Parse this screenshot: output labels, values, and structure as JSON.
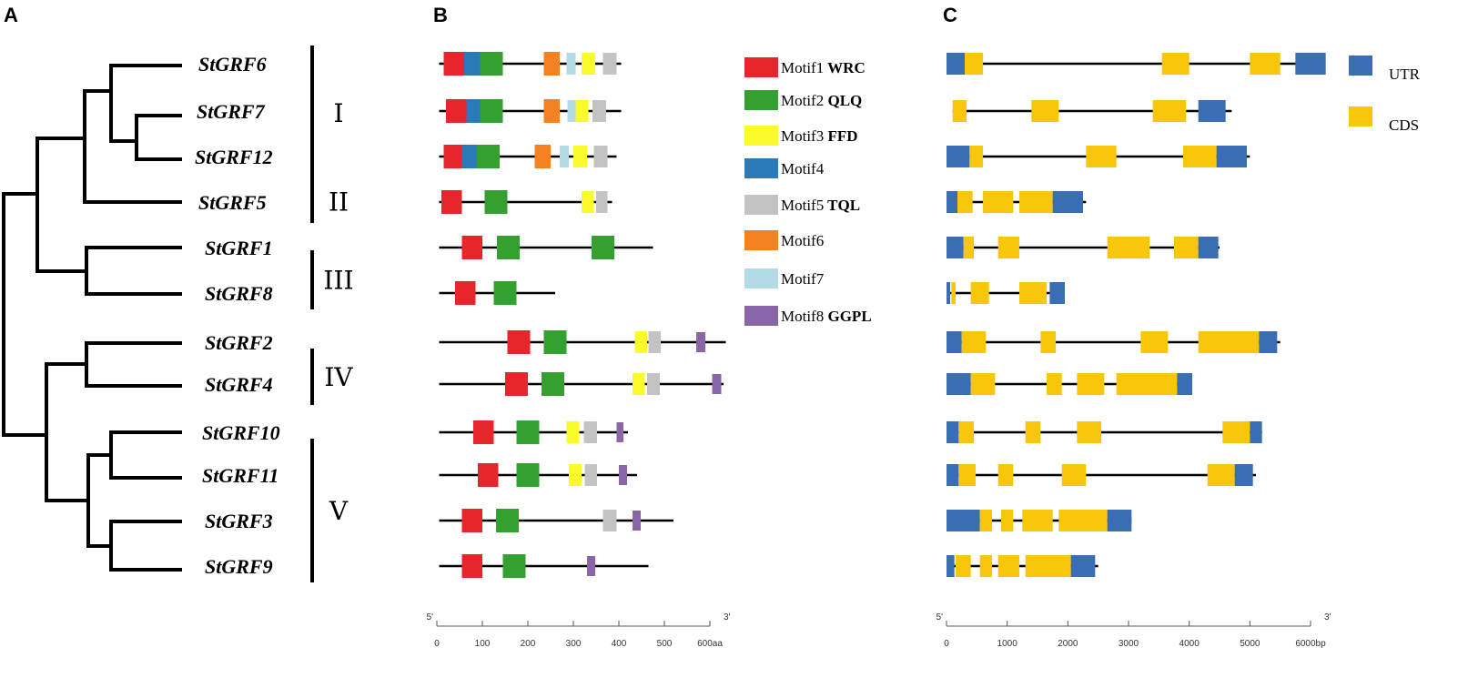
{
  "panels": {
    "a": "A",
    "b": "B",
    "c": "C"
  },
  "genes": [
    "StGRF6",
    "StGRF7",
    "StGRF12",
    "StGRF5",
    "StGRF1",
    "StGRF8",
    "StGRF2",
    "StGRF4",
    "StGRF10",
    "StGRF11",
    "StGRF3",
    "StGRF9"
  ],
  "groups": [
    {
      "label": "I",
      "rows": [
        0,
        2
      ]
    },
    {
      "label": "II",
      "rows": [
        3,
        3
      ]
    },
    {
      "label": "III",
      "rows": [
        4,
        5
      ]
    },
    {
      "label": "IV",
      "rows": [
        6,
        7
      ]
    },
    {
      "label": "V",
      "rows": [
        8,
        11
      ]
    }
  ],
  "motif_legend": [
    {
      "id": 1,
      "name": "Motif1",
      "tag": "WRC",
      "color": "#e8252a"
    },
    {
      "id": 2,
      "name": "Motif2",
      "tag": "QLQ",
      "color": "#34a02f"
    },
    {
      "id": 3,
      "name": "Motif3",
      "tag": "FFD",
      "color": "#fbfb2a"
    },
    {
      "id": 4,
      "name": "Motif4",
      "tag": "",
      "color": "#2a79b9"
    },
    {
      "id": 5,
      "name": "Motif5",
      "tag": "TQL",
      "color": "#c3c3c3"
    },
    {
      "id": 6,
      "name": "Motif6",
      "tag": "",
      "color": "#f58220"
    },
    {
      "id": 7,
      "name": "Motif7",
      "tag": "",
      "color": "#b3dbe6"
    },
    {
      "id": 8,
      "name": "Motif8",
      "tag": "GGPL",
      "color": "#8a66a8"
    }
  ],
  "motif_track": [
    {
      "gene": "StGRF6",
      "start": 5,
      "end": 405,
      "motifs": [
        [
          1,
          15,
          60
        ],
        [
          4,
          60,
          95
        ],
        [
          2,
          95,
          145
        ],
        [
          6,
          235,
          270
        ],
        [
          7,
          285,
          305
        ],
        [
          3,
          318,
          348
        ],
        [
          5,
          365,
          395
        ]
      ]
    },
    {
      "gene": "StGRF7",
      "start": 5,
      "end": 405,
      "motifs": [
        [
          1,
          20,
          65
        ],
        [
          4,
          65,
          95
        ],
        [
          2,
          95,
          145
        ],
        [
          6,
          235,
          270
        ],
        [
          7,
          287,
          305
        ],
        [
          3,
          305,
          333
        ],
        [
          5,
          342,
          372
        ]
      ]
    },
    {
      "gene": "StGRF12",
      "start": 5,
      "end": 395,
      "motifs": [
        [
          1,
          15,
          55
        ],
        [
          4,
          55,
          88
        ],
        [
          2,
          88,
          138
        ],
        [
          6,
          215,
          250
        ],
        [
          7,
          270,
          290
        ],
        [
          3,
          300,
          330
        ],
        [
          5,
          345,
          375
        ]
      ]
    },
    {
      "gene": "StGRF5",
      "start": 5,
      "end": 385,
      "motifs": [
        [
          1,
          10,
          55
        ],
        [
          2,
          105,
          155
        ],
        [
          3,
          318,
          345
        ],
        [
          5,
          350,
          375
        ]
      ]
    },
    {
      "gene": "StGRF1",
      "start": 5,
      "end": 475,
      "motifs": [
        [
          1,
          55,
          100
        ],
        [
          2,
          132,
          182
        ],
        [
          2,
          340,
          390
        ]
      ]
    },
    {
      "gene": "StGRF8",
      "start": 5,
      "end": 260,
      "motifs": [
        [
          1,
          40,
          85
        ],
        [
          2,
          125,
          175
        ]
      ]
    },
    {
      "gene": "StGRF2",
      "start": 5,
      "end": 635,
      "motifs": [
        [
          1,
          155,
          205
        ],
        [
          2,
          235,
          285
        ],
        [
          3,
          435,
          462
        ],
        [
          5,
          465,
          492
        ],
        [
          8,
          570,
          590
        ]
      ]
    },
    {
      "gene": "StGRF4",
      "start": 5,
      "end": 630,
      "motifs": [
        [
          1,
          150,
          200
        ],
        [
          2,
          230,
          280
        ],
        [
          3,
          430,
          457
        ],
        [
          5,
          462,
          490
        ],
        [
          8,
          605,
          625
        ]
      ]
    },
    {
      "gene": "StGRF10",
      "start": 5,
      "end": 420,
      "motifs": [
        [
          1,
          80,
          125
        ],
        [
          2,
          175,
          225
        ],
        [
          3,
          285,
          313
        ],
        [
          5,
          323,
          352
        ],
        [
          8,
          395,
          410
        ]
      ]
    },
    {
      "gene": "StGRF11",
      "start": 5,
      "end": 440,
      "motifs": [
        [
          1,
          90,
          135
        ],
        [
          2,
          175,
          225
        ],
        [
          3,
          290,
          318
        ],
        [
          5,
          325,
          352
        ],
        [
          8,
          400,
          418
        ]
      ]
    },
    {
      "gene": "StGRF3",
      "start": 5,
      "end": 520,
      "motifs": [
        [
          1,
          55,
          100
        ],
        [
          2,
          130,
          180
        ],
        [
          5,
          365,
          395
        ],
        [
          8,
          430,
          448
        ]
      ]
    },
    {
      "gene": "StGRF9",
      "start": 5,
      "end": 465,
      "motifs": [
        [
          1,
          55,
          100
        ],
        [
          2,
          145,
          195
        ],
        [
          8,
          330,
          348
        ]
      ]
    }
  ],
  "motif_axis": {
    "max": 600,
    "ticks": [
      "0",
      "100",
      "200",
      "300",
      "400",
      "500",
      "600aa"
    ],
    "left_end": "5'",
    "right_end": "3'"
  },
  "gene_legend": [
    {
      "name": "UTR",
      "color": "#3b6db3"
    },
    {
      "name": "CDS",
      "color": "#f8c60b"
    }
  ],
  "gene_track": [
    {
      "gene": "StGRF6",
      "start": 0,
      "end": 6200,
      "features": [
        [
          "UTR",
          0,
          300
        ],
        [
          "CDS",
          300,
          600
        ],
        [
          "CDS",
          3550,
          4000
        ],
        [
          "CDS",
          5000,
          5500
        ],
        [
          "UTR",
          5750,
          6250
        ]
      ]
    },
    {
      "gene": "StGRF7",
      "start": 100,
      "end": 4700,
      "features": [
        [
          "CDS",
          100,
          330
        ],
        [
          "CDS",
          1400,
          1850
        ],
        [
          "CDS",
          3400,
          3950
        ],
        [
          "UTR",
          4150,
          4600
        ]
      ]
    },
    {
      "gene": "StGRF12",
      "start": 0,
      "end": 5000,
      "features": [
        [
          "UTR",
          0,
          380
        ],
        [
          "CDS",
          380,
          600
        ],
        [
          "CDS",
          2300,
          2800
        ],
        [
          "CDS",
          3900,
          4450
        ],
        [
          "UTR",
          4450,
          4950
        ]
      ]
    },
    {
      "gene": "StGRF5",
      "start": 0,
      "end": 2300,
      "features": [
        [
          "UTR",
          0,
          180
        ],
        [
          "CDS",
          180,
          430
        ],
        [
          "CDS",
          600,
          1100
        ],
        [
          "CDS",
          1200,
          1750
        ],
        [
          "UTR",
          1750,
          2250
        ]
      ]
    },
    {
      "gene": "StGRF1",
      "start": 0,
      "end": 4500,
      "features": [
        [
          "UTR",
          0,
          280
        ],
        [
          "CDS",
          280,
          450
        ],
        [
          "CDS",
          850,
          1200
        ],
        [
          "CDS",
          2650,
          3350
        ],
        [
          "CDS",
          3750,
          4150
        ],
        [
          "UTR",
          4150,
          4480
        ]
      ]
    },
    {
      "gene": "StGRF8",
      "start": 0,
      "end": 1900,
      "features": [
        [
          "UTR",
          0,
          60
        ],
        [
          "CDS",
          80,
          150
        ],
        [
          "CDS",
          400,
          700
        ],
        [
          "CDS",
          1200,
          1650
        ],
        [
          "UTR",
          1700,
          1950
        ]
      ]
    },
    {
      "gene": "StGRF2",
      "start": 0,
      "end": 5500,
      "features": [
        [
          "UTR",
          0,
          250
        ],
        [
          "CDS",
          250,
          650
        ],
        [
          "CDS",
          1550,
          1800
        ],
        [
          "CDS",
          3200,
          3650
        ],
        [
          "CDS",
          4150,
          5150
        ],
        [
          "UTR",
          5150,
          5450
        ]
      ]
    },
    {
      "gene": "StGRF4",
      "start": 0,
      "end": 4000,
      "features": [
        [
          "UTR",
          0,
          400
        ],
        [
          "CDS",
          400,
          800
        ],
        [
          "CDS",
          1650,
          1900
        ],
        [
          "CDS",
          2150,
          2600
        ],
        [
          "CDS",
          2800,
          3800
        ],
        [
          "UTR",
          3800,
          4050
        ]
      ]
    },
    {
      "gene": "StGRF10",
      "start": 0,
      "end": 5200,
      "features": [
        [
          "UTR",
          0,
          200
        ],
        [
          "CDS",
          200,
          450
        ],
        [
          "CDS",
          1300,
          1550
        ],
        [
          "CDS",
          2150,
          2550
        ],
        [
          "CDS",
          4550,
          5000
        ],
        [
          "UTR",
          5000,
          5200
        ]
      ]
    },
    {
      "gene": "StGRF11",
      "start": 0,
      "end": 5100,
      "features": [
        [
          "UTR",
          0,
          200
        ],
        [
          "CDS",
          200,
          480
        ],
        [
          "CDS",
          850,
          1100
        ],
        [
          "CDS",
          1900,
          2300
        ],
        [
          "CDS",
          4300,
          4750
        ],
        [
          "UTR",
          4750,
          5050
        ]
      ]
    },
    {
      "gene": "StGRF3",
      "start": 0,
      "end": 3050,
      "features": [
        [
          "UTR",
          0,
          550
        ],
        [
          "CDS",
          550,
          750
        ],
        [
          "CDS",
          900,
          1100
        ],
        [
          "CDS",
          1250,
          1750
        ],
        [
          "CDS",
          1850,
          2650
        ],
        [
          "UTR",
          2650,
          3050
        ]
      ]
    },
    {
      "gene": "StGRF9",
      "start": 0,
      "end": 2500,
      "features": [
        [
          "UTR",
          0,
          130
        ],
        [
          "CDS",
          150,
          400
        ],
        [
          "CDS",
          550,
          750
        ],
        [
          "CDS",
          850,
          1200
        ],
        [
          "CDS",
          1300,
          2050
        ],
        [
          "UTR",
          2050,
          2450
        ]
      ]
    }
  ],
  "gene_axis": {
    "max": 6000,
    "ticks": [
      "0",
      "1000",
      "2000",
      "3000",
      "4000",
      "5000",
      "6000bp"
    ],
    "left_end": "5'",
    "right_end": "3'"
  }
}
